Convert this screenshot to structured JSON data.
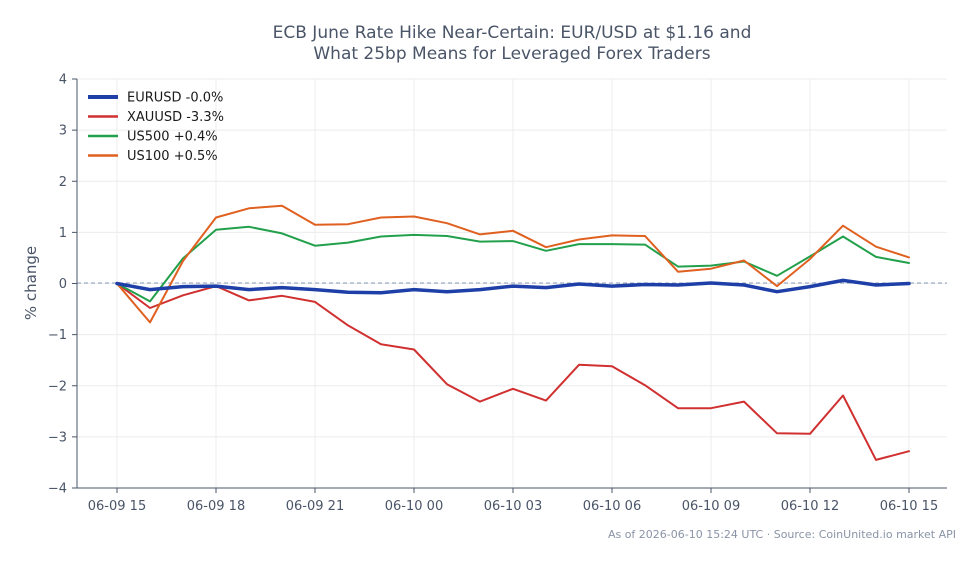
{
  "chart_data": {
    "type": "line",
    "title_lines": [
      "ECB June Rate Hike Near-Certain: EUR/USD at $1.16 and",
      "What 25bp Means for Leveraged Forex Traders"
    ],
    "ylabel": "% change",
    "xlabel": "",
    "ylim": [
      -4,
      4
    ],
    "yticks": [
      -4,
      -3,
      -2,
      -1,
      0,
      1,
      2,
      3,
      4
    ],
    "ytick_labels": [
      "−4",
      "−3",
      "−2",
      "−1",
      "0",
      "1",
      "2",
      "3",
      "4"
    ],
    "x_ticks": [
      {
        "at": 0,
        "label": "06-09 15"
      },
      {
        "at": 3,
        "label": "06-09 18"
      },
      {
        "at": 6,
        "label": "06-09 21"
      },
      {
        "at": 9,
        "label": "06-10 00"
      },
      {
        "at": 12,
        "label": "06-10 03"
      },
      {
        "at": 15,
        "label": "06-10 06"
      },
      {
        "at": 18,
        "label": "06-10 09"
      },
      {
        "at": 21,
        "label": "06-10 12"
      },
      {
        "at": 24,
        "label": "06-10 15"
      }
    ],
    "grid": true,
    "zero_reference_line": true,
    "legend_position": "top-left",
    "x": [
      "06-09 15",
      "06-09 16",
      "06-09 17",
      "06-09 18",
      "06-09 19",
      "06-09 20",
      "06-09 21",
      "06-09 22",
      "06-09 23",
      "06-10 00",
      "06-10 01",
      "06-10 02",
      "06-10 03",
      "06-10 04",
      "06-10 05",
      "06-10 06",
      "06-10 07",
      "06-10 08",
      "06-10 09",
      "06-10 10",
      "06-10 11",
      "06-10 12",
      "06-10 13",
      "06-10 14",
      "06-10 15"
    ],
    "series": [
      {
        "name": "EURUSD -0.0%",
        "color": "#1f3fa8",
        "width": 3.5,
        "values": [
          0,
          -0.12,
          -0.06,
          -0.05,
          -0.12,
          -0.08,
          -0.12,
          -0.17,
          -0.18,
          -0.12,
          -0.16,
          -0.12,
          -0.05,
          -0.08,
          -0.01,
          -0.05,
          -0.02,
          -0.03,
          0.01,
          -0.03,
          -0.16,
          -0.06,
          0.06,
          -0.03,
          0.0
        ]
      },
      {
        "name": "XAUUSD -3.3%",
        "color": "#d03030",
        "width": 2,
        "values": [
          0,
          -0.48,
          -0.23,
          -0.05,
          -0.33,
          -0.24,
          -0.36,
          -0.82,
          -1.19,
          -1.29,
          -1.97,
          -2.31,
          -2.06,
          -2.29,
          -1.59,
          -1.62,
          -1.99,
          -2.44,
          -2.44,
          -2.31,
          -2.93,
          -2.94,
          -2.19,
          -3.45,
          -3.28
        ]
      },
      {
        "name": "US500 +0.4%",
        "color": "#22a04b",
        "width": 2,
        "values": [
          0,
          -0.35,
          0.49,
          1.05,
          1.11,
          0.98,
          0.74,
          0.8,
          0.92,
          0.95,
          0.93,
          0.82,
          0.83,
          0.64,
          0.77,
          0.77,
          0.76,
          0.33,
          0.35,
          0.43,
          0.15,
          0.53,
          0.92,
          0.52,
          0.4
        ]
      },
      {
        "name": "US100 +0.5%",
        "color": "#e06020",
        "width": 2,
        "values": [
          0,
          -0.76,
          0.44,
          1.29,
          1.47,
          1.52,
          1.15,
          1.16,
          1.29,
          1.31,
          1.18,
          0.96,
          1.03,
          0.71,
          0.86,
          0.94,
          0.93,
          0.23,
          0.29,
          0.45,
          -0.05,
          0.48,
          1.13,
          0.72,
          0.51
        ]
      }
    ]
  },
  "footer": {
    "note": "As of 2026-06-10 15:24 UTC · Source: CoinUnited.io market API"
  }
}
